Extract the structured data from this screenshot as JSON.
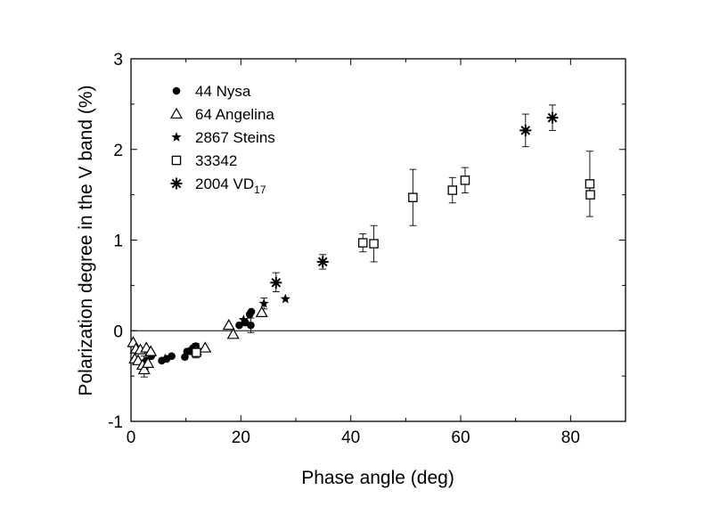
{
  "chart_data": {
    "type": "scatter",
    "title": "",
    "xlabel": "Phase angle (deg)",
    "ylabel": "Polarization degree in the V band (%)",
    "xlim": [
      0,
      90
    ],
    "ylim": [
      -1,
      3
    ],
    "xticks": [
      0,
      20,
      40,
      60,
      80
    ],
    "yticks": [
      -1,
      0,
      1,
      2,
      3
    ],
    "xtick_labels": [
      "0",
      "20",
      "40",
      "60",
      "80"
    ],
    "ytick_labels": [
      "-1",
      "0",
      "1",
      "2",
      "3"
    ],
    "reference_line_y": 0,
    "legend_position": "top-left",
    "series": [
      {
        "name": "44 Nysa",
        "label_base": "44 Nysa",
        "label_sub": "",
        "marker": "filled-circle",
        "points": [
          {
            "x": 2.8,
            "y": -0.33
          },
          {
            "x": 3.7,
            "y": -0.28
          },
          {
            "x": 5.6,
            "y": -0.33
          },
          {
            "x": 6.5,
            "y": -0.31
          },
          {
            "x": 7.4,
            "y": -0.28
          },
          {
            "x": 9.8,
            "y": -0.29
          },
          {
            "x": 10.2,
            "y": -0.23
          },
          {
            "x": 10.8,
            "y": -0.22
          },
          {
            "x": 11.3,
            "y": -0.19
          },
          {
            "x": 11.8,
            "y": -0.17
          },
          {
            "x": 19.7,
            "y": 0.06
          },
          {
            "x": 20.8,
            "y": 0.09
          },
          {
            "x": 21.6,
            "y": 0.18
          },
          {
            "x": 21.9,
            "y": 0.21
          },
          {
            "x": 21.8,
            "y": 0.06
          }
        ]
      },
      {
        "name": "64 Angelina",
        "label_base": "64 Angelina",
        "label_sub": "",
        "marker": "open-triangle",
        "points": [
          {
            "x": 0.4,
            "y": -0.13
          },
          {
            "x": 0.7,
            "y": -0.31
          },
          {
            "x": 0.9,
            "y": -0.2
          },
          {
            "x": 1.3,
            "y": -0.33
          },
          {
            "x": 1.7,
            "y": -0.21
          },
          {
            "x": 2.1,
            "y": -0.38
          },
          {
            "x": 2.4,
            "y": -0.43
          },
          {
            "x": 2.8,
            "y": -0.19
          },
          {
            "x": 3.1,
            "y": -0.36
          },
          {
            "x": 3.6,
            "y": -0.23
          },
          {
            "x": 11.8,
            "y": -0.22
          },
          {
            "x": 13.5,
            "y": -0.19
          },
          {
            "x": 17.8,
            "y": 0.06
          },
          {
            "x": 18.6,
            "y": -0.04
          },
          {
            "x": 23.8,
            "y": 0.2
          }
        ]
      },
      {
        "name": "2867 Steins",
        "label_base": "2867 Steins",
        "label_sub": "",
        "marker": "filled-star",
        "points": [
          {
            "x": 6.2,
            "y": -0.31
          },
          {
            "x": 11.8,
            "y": -0.23
          },
          {
            "x": 20.5,
            "y": 0.12
          },
          {
            "x": 24.2,
            "y": 0.3
          },
          {
            "x": 28.1,
            "y": 0.35
          }
        ]
      },
      {
        "name": "33342",
        "label_base": "33342",
        "label_sub": "",
        "marker": "open-square",
        "points": [
          {
            "x": 11.9,
            "y": -0.24
          },
          {
            "x": 42.2,
            "y": 0.97
          },
          {
            "x": 44.2,
            "y": 0.96
          },
          {
            "x": 51.3,
            "y": 1.47
          },
          {
            "x": 58.5,
            "y": 1.55
          },
          {
            "x": 60.8,
            "y": 1.66
          },
          {
            "x": 83.5,
            "y": 1.62
          },
          {
            "x": 83.6,
            "y": 1.5
          }
        ]
      },
      {
        "name": "2004 VD17",
        "label_base": "2004 VD",
        "label_sub": "17",
        "marker": "asterisk",
        "points": [
          {
            "x": 26.4,
            "y": 0.53
          },
          {
            "x": 34.9,
            "y": 0.76
          },
          {
            "x": 71.8,
            "y": 2.21
          },
          {
            "x": 76.7,
            "y": 2.35
          }
        ]
      }
    ],
    "error_bars": [
      {
        "x": 2.4,
        "y_low": -0.51,
        "y_high": -0.28
      },
      {
        "x": 11.8,
        "y_low": -0.3,
        "y_high": -0.14
      },
      {
        "x": 21.8,
        "y_low": -0.02,
        "y_high": 0.14
      },
      {
        "x": 24.2,
        "y_low": 0.24,
        "y_high": 0.36
      },
      {
        "x": 26.4,
        "y_low": 0.43,
        "y_high": 0.64
      },
      {
        "x": 34.9,
        "y_low": 0.68,
        "y_high": 0.84
      },
      {
        "x": 42.2,
        "y_low": 0.87,
        "y_high": 1.07
      },
      {
        "x": 44.2,
        "y_low": 0.76,
        "y_high": 1.16
      },
      {
        "x": 51.3,
        "y_low": 1.16,
        "y_high": 1.78
      },
      {
        "x": 58.5,
        "y_low": 1.41,
        "y_high": 1.69
      },
      {
        "x": 60.8,
        "y_low": 1.52,
        "y_high": 1.8
      },
      {
        "x": 71.8,
        "y_low": 2.03,
        "y_high": 2.39
      },
      {
        "x": 76.7,
        "y_low": 2.21,
        "y_high": 2.49
      },
      {
        "x": 83.5,
        "y_low": 1.26,
        "y_high": 1.98
      }
    ]
  }
}
